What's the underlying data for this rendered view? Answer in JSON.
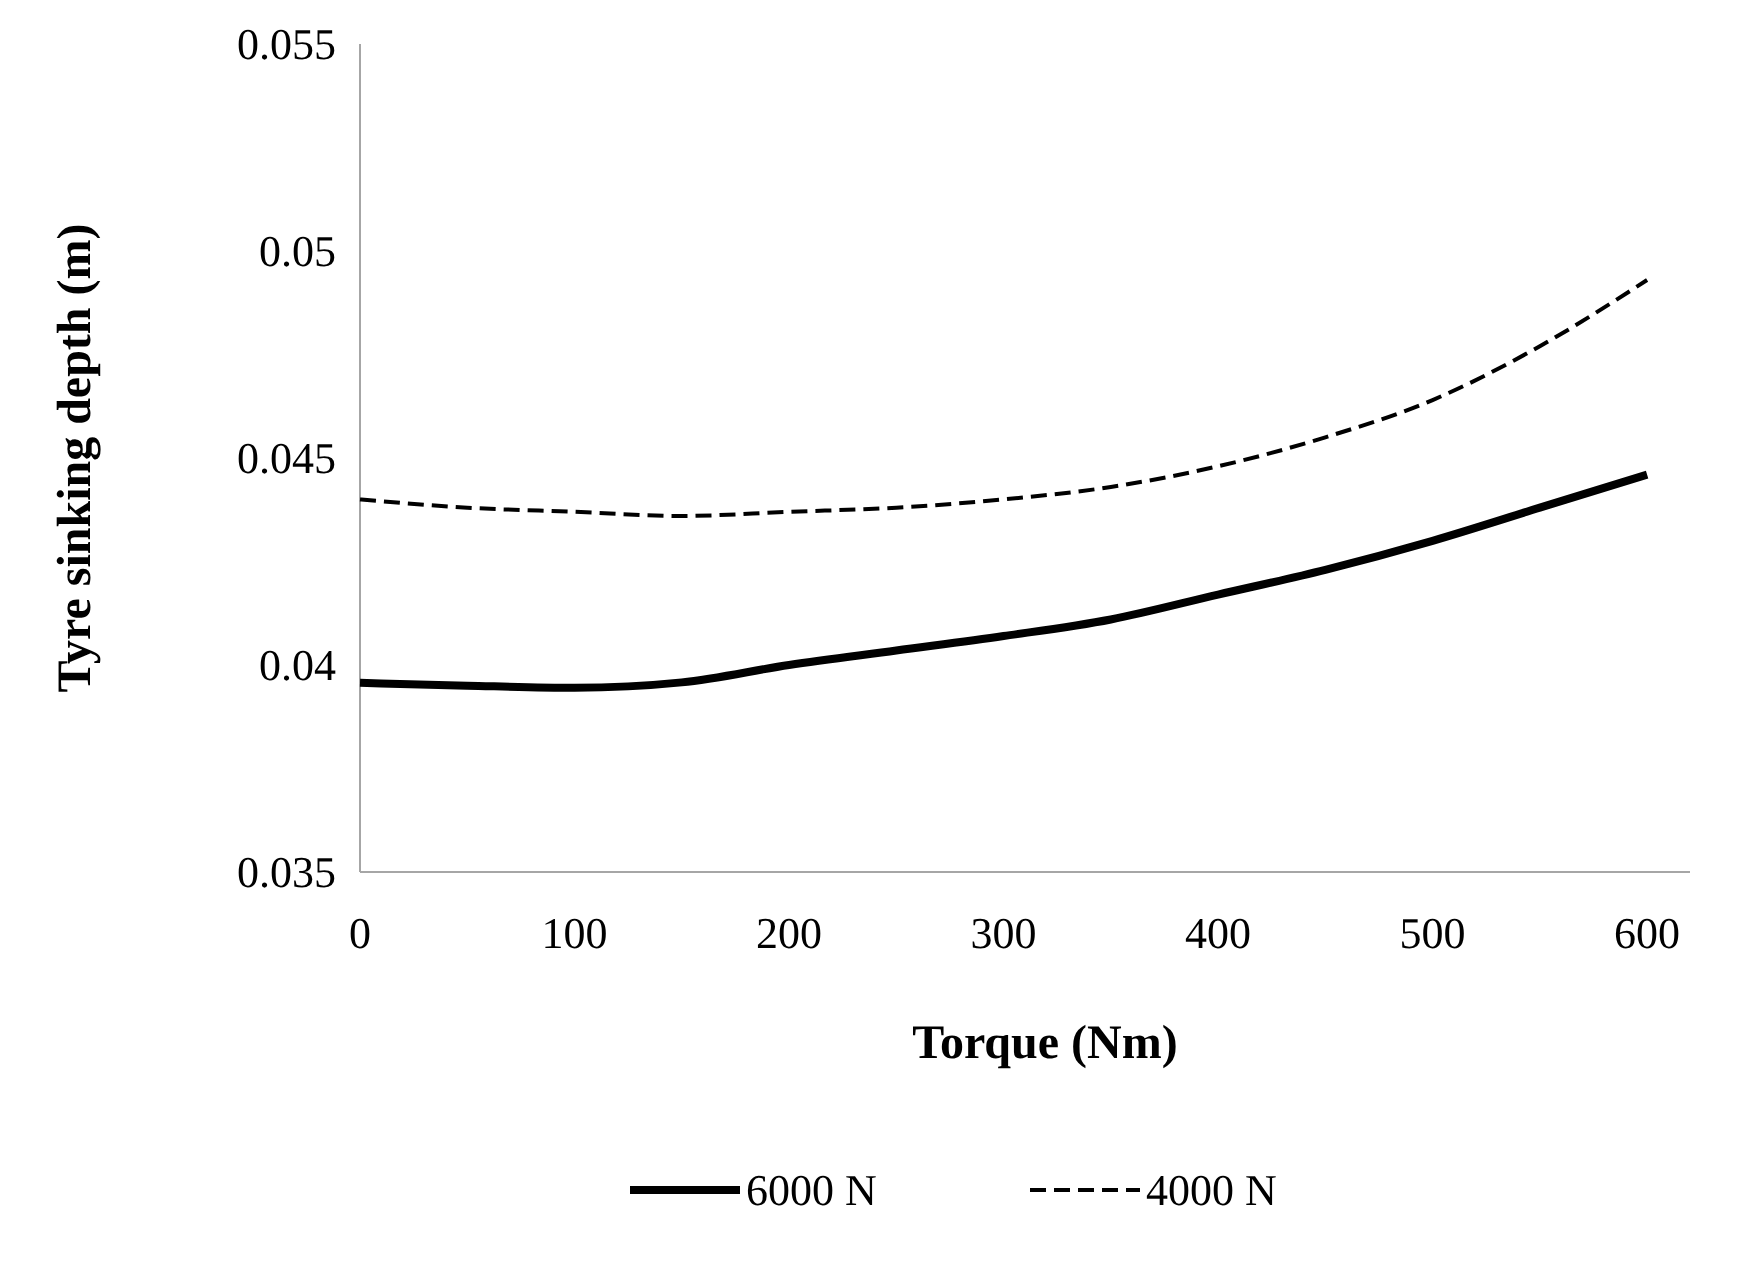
{
  "chart_data": {
    "type": "line",
    "xlabel": "Torque (Nm)",
    "ylabel": "Tyre sinking depth (m)",
    "x": [
      0,
      50,
      100,
      150,
      200,
      250,
      300,
      350,
      400,
      450,
      500,
      550,
      600
    ],
    "series": [
      {
        "name": "6000 N",
        "color": "#000000",
        "line_style": "solid",
        "values": [
          0.03957,
          0.0395,
          0.03945,
          0.03958,
          0.04,
          0.04035,
          0.0407,
          0.0411,
          0.0417,
          0.0423,
          0.043,
          0.0438,
          0.0446
        ]
      },
      {
        "name": "4000 N",
        "color": "#000000",
        "line_style": "dashed",
        "values": [
          0.044,
          0.0438,
          0.0437,
          0.0436,
          0.0437,
          0.0438,
          0.044,
          0.0443,
          0.0448,
          0.0455,
          0.0464,
          0.0477,
          0.0493
        ]
      }
    ],
    "xlim": [
      0,
      620
    ],
    "xticks": [
      0,
      100,
      200,
      300,
      400,
      500,
      600
    ],
    "ylim": [
      0.035,
      0.055
    ],
    "yticks": [
      0.035,
      0.04,
      0.045,
      0.05,
      0.055
    ],
    "grid": false,
    "legend": "bottom",
    "marker": "none"
  }
}
